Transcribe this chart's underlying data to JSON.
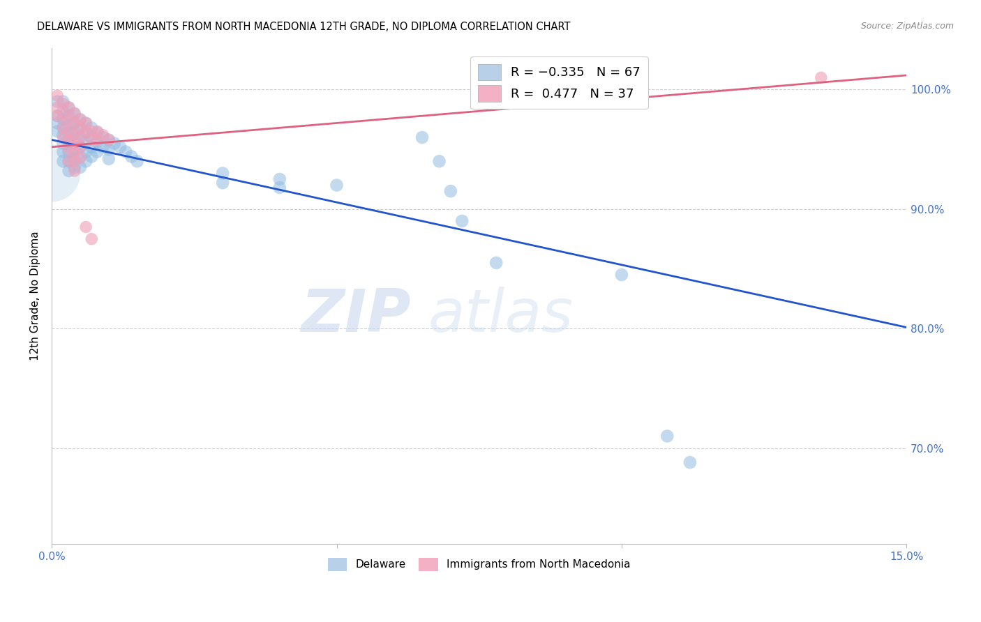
{
  "title": "DELAWARE VS IMMIGRANTS FROM NORTH MACEDONIA 12TH GRADE, NO DIPLOMA CORRELATION CHART",
  "source": "Source: ZipAtlas.com",
  "ylabel": "12th Grade, No Diploma",
  "xlim": [
    0.0,
    0.15
  ],
  "ylim": [
    0.62,
    1.035
  ],
  "yticks": [
    0.7,
    0.8,
    0.9,
    1.0
  ],
  "yticklabels": [
    "70.0%",
    "80.0%",
    "90.0%",
    "100.0%"
  ],
  "blue_color": "#92bce0",
  "pink_color": "#f0a0b8",
  "blue_line_color": "#2255cc",
  "pink_line_color": "#e06080",
  "blue_line_x0": 0.0,
  "blue_line_y0": 0.958,
  "blue_line_x1": 0.15,
  "blue_line_y1": 0.801,
  "pink_line_x0": 0.0,
  "pink_line_y0": 0.952,
  "pink_line_x1": 0.15,
  "pink_line_y1": 1.012,
  "watermark_zip": "ZIP",
  "watermark_atlas": "atlas",
  "blue_points": [
    [
      0.001,
      0.99
    ],
    [
      0.001,
      0.978
    ],
    [
      0.001,
      0.972
    ],
    [
      0.001,
      0.965
    ],
    [
      0.002,
      0.99
    ],
    [
      0.002,
      0.982
    ],
    [
      0.002,
      0.975
    ],
    [
      0.002,
      0.968
    ],
    [
      0.002,
      0.962
    ],
    [
      0.002,
      0.955
    ],
    [
      0.002,
      0.948
    ],
    [
      0.002,
      0.94
    ],
    [
      0.003,
      0.985
    ],
    [
      0.003,
      0.978
    ],
    [
      0.003,
      0.97
    ],
    [
      0.003,
      0.963
    ],
    [
      0.003,
      0.955
    ],
    [
      0.003,
      0.948
    ],
    [
      0.003,
      0.94
    ],
    [
      0.003,
      0.932
    ],
    [
      0.004,
      0.98
    ],
    [
      0.004,
      0.972
    ],
    [
      0.004,
      0.965
    ],
    [
      0.004,
      0.958
    ],
    [
      0.004,
      0.95
    ],
    [
      0.004,
      0.942
    ],
    [
      0.004,
      0.935
    ],
    [
      0.005,
      0.975
    ],
    [
      0.005,
      0.968
    ],
    [
      0.005,
      0.96
    ],
    [
      0.005,
      0.952
    ],
    [
      0.005,
      0.944
    ],
    [
      0.005,
      0.935
    ],
    [
      0.006,
      0.972
    ],
    [
      0.006,
      0.964
    ],
    [
      0.006,
      0.956
    ],
    [
      0.006,
      0.948
    ],
    [
      0.006,
      0.94
    ],
    [
      0.007,
      0.968
    ],
    [
      0.007,
      0.96
    ],
    [
      0.007,
      0.952
    ],
    [
      0.007,
      0.944
    ],
    [
      0.008,
      0.964
    ],
    [
      0.008,
      0.956
    ],
    [
      0.008,
      0.948
    ],
    [
      0.009,
      0.96
    ],
    [
      0.009,
      0.952
    ],
    [
      0.01,
      0.958
    ],
    [
      0.01,
      0.95
    ],
    [
      0.01,
      0.942
    ],
    [
      0.011,
      0.955
    ],
    [
      0.012,
      0.952
    ],
    [
      0.013,
      0.948
    ],
    [
      0.014,
      0.944
    ],
    [
      0.015,
      0.94
    ],
    [
      0.03,
      0.93
    ],
    [
      0.03,
      0.922
    ],
    [
      0.04,
      0.925
    ],
    [
      0.04,
      0.918
    ],
    [
      0.05,
      0.92
    ],
    [
      0.065,
      0.96
    ],
    [
      0.068,
      0.94
    ],
    [
      0.07,
      0.915
    ],
    [
      0.072,
      0.89
    ],
    [
      0.078,
      0.855
    ],
    [
      0.1,
      0.845
    ],
    [
      0.108,
      0.71
    ],
    [
      0.112,
      0.688
    ]
  ],
  "pink_points": [
    [
      0.001,
      0.995
    ],
    [
      0.001,
      0.985
    ],
    [
      0.001,
      0.978
    ],
    [
      0.002,
      0.988
    ],
    [
      0.002,
      0.978
    ],
    [
      0.002,
      0.968
    ],
    [
      0.002,
      0.96
    ],
    [
      0.003,
      0.985
    ],
    [
      0.003,
      0.975
    ],
    [
      0.003,
      0.965
    ],
    [
      0.003,
      0.958
    ],
    [
      0.003,
      0.95
    ],
    [
      0.003,
      0.94
    ],
    [
      0.004,
      0.98
    ],
    [
      0.004,
      0.972
    ],
    [
      0.004,
      0.962
    ],
    [
      0.004,
      0.955
    ],
    [
      0.004,
      0.948
    ],
    [
      0.004,
      0.94
    ],
    [
      0.004,
      0.932
    ],
    [
      0.005,
      0.975
    ],
    [
      0.005,
      0.968
    ],
    [
      0.005,
      0.96
    ],
    [
      0.005,
      0.952
    ],
    [
      0.005,
      0.943
    ],
    [
      0.006,
      0.972
    ],
    [
      0.006,
      0.965
    ],
    [
      0.006,
      0.885
    ],
    [
      0.007,
      0.965
    ],
    [
      0.007,
      0.958
    ],
    [
      0.007,
      0.875
    ],
    [
      0.008,
      0.965
    ],
    [
      0.008,
      0.958
    ],
    [
      0.009,
      0.962
    ],
    [
      0.01,
      0.958
    ],
    [
      0.135,
      1.01
    ]
  ],
  "large_circle": [
    0.0,
    0.93
  ],
  "large_circle_size": 3500,
  "title_fontsize": 10.5,
  "axis_color": "#4472c4",
  "background_color": "#ffffff",
  "grid_color": "#c8c8c8"
}
